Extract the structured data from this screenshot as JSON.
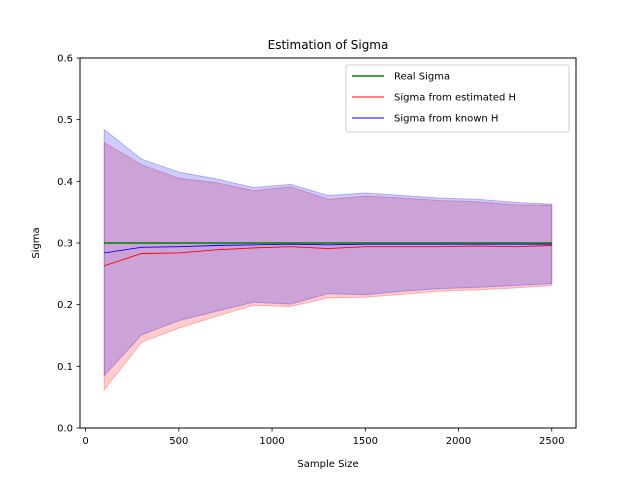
{
  "chart_data": {
    "type": "line",
    "title": "Estimation of Sigma",
    "xlabel": "Sample Size",
    "ylabel": "Sigma",
    "xlim": [
      -30,
      2630
    ],
    "ylim": [
      0.0,
      0.6
    ],
    "xticks": [
      0,
      500,
      1000,
      1500,
      2000,
      2500
    ],
    "yticks": [
      0.0,
      0.1,
      0.2,
      0.3,
      0.4,
      0.5,
      0.6
    ],
    "xtick_labels": [
      "0",
      "500",
      "1000",
      "1500",
      "2000",
      "2500"
    ],
    "ytick_labels": [
      "0.0",
      "0.1",
      "0.2",
      "0.3",
      "0.4",
      "0.5",
      "0.6"
    ],
    "grid": false,
    "legend_position": "top-right",
    "x": [
      100,
      300,
      500,
      700,
      900,
      1100,
      1300,
      1500,
      1700,
      1900,
      2100,
      2300,
      2500
    ],
    "series": [
      {
        "name": "Real Sigma",
        "color": "#008000",
        "values": [
          0.3,
          0.3,
          0.3,
          0.3,
          0.3,
          0.3,
          0.3,
          0.3,
          0.3,
          0.3,
          0.3,
          0.3,
          0.3
        ]
      },
      {
        "name": "Sigma from estimated H",
        "color": "#ff0000",
        "values": [
          0.263,
          0.283,
          0.284,
          0.289,
          0.292,
          0.294,
          0.291,
          0.294,
          0.294,
          0.294,
          0.295,
          0.294,
          0.296
        ],
        "band_lower": [
          0.062,
          0.139,
          0.162,
          0.181,
          0.199,
          0.197,
          0.211,
          0.212,
          0.217,
          0.222,
          0.224,
          0.227,
          0.231
        ],
        "band_upper": [
          0.463,
          0.427,
          0.405,
          0.398,
          0.385,
          0.391,
          0.371,
          0.376,
          0.373,
          0.369,
          0.367,
          0.362,
          0.361
        ]
      },
      {
        "name": "Sigma from known H",
        "color": "#0000ff",
        "values": [
          0.284,
          0.293,
          0.294,
          0.296,
          0.297,
          0.298,
          0.297,
          0.298,
          0.298,
          0.298,
          0.298,
          0.298,
          0.298
        ],
        "band_lower": [
          0.085,
          0.151,
          0.174,
          0.189,
          0.204,
          0.201,
          0.218,
          0.216,
          0.222,
          0.226,
          0.228,
          0.231,
          0.234
        ],
        "band_upper": [
          0.484,
          0.436,
          0.415,
          0.404,
          0.39,
          0.395,
          0.377,
          0.381,
          0.377,
          0.373,
          0.371,
          0.366,
          0.363
        ]
      }
    ]
  }
}
